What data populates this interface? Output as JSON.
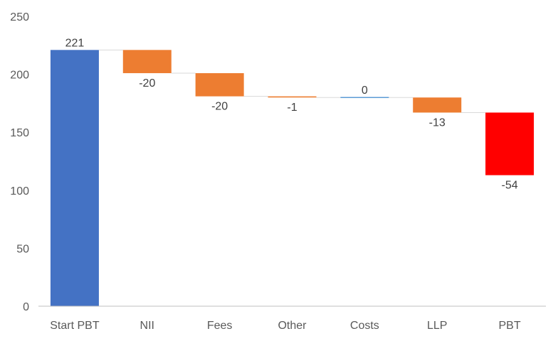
{
  "chart_data": {
    "type": "bar",
    "subtype": "waterfall",
    "title": "",
    "xlabel": "",
    "ylabel": "",
    "ylim": [
      0,
      250
    ],
    "yticks": [
      0,
      50,
      100,
      150,
      200,
      250
    ],
    "grid": false,
    "legend": "none",
    "categories": [
      "Start PBT",
      "NII",
      "Fees",
      "Other",
      "Costs",
      "LLP",
      "PBT"
    ],
    "values": [
      221,
      -20,
      -20,
      -1,
      0,
      -13,
      -54
    ],
    "data_labels": [
      "221",
      "-20",
      "-20",
      "-1",
      "0",
      "-13",
      "-54"
    ],
    "bars": [
      {
        "category": "Start PBT",
        "kind": "total",
        "start": 0,
        "end": 221,
        "color": "#4472C4"
      },
      {
        "category": "NII",
        "kind": "delta",
        "start": 221,
        "end": 201,
        "color": "#ED7D31"
      },
      {
        "category": "Fees",
        "kind": "delta",
        "start": 201,
        "end": 181,
        "color": "#ED7D31"
      },
      {
        "category": "Other",
        "kind": "delta",
        "start": 181,
        "end": 180,
        "color": "#ED7D31"
      },
      {
        "category": "Costs",
        "kind": "delta",
        "start": 180,
        "end": 180,
        "color": "#5B9BD5"
      },
      {
        "category": "LLP",
        "kind": "delta",
        "start": 180,
        "end": 167,
        "color": "#ED7D31"
      },
      {
        "category": "PBT",
        "kind": "delta",
        "start": 167,
        "end": 113,
        "color": "#FF0000"
      }
    ],
    "colors": {
      "total": "#4472C4",
      "negative": "#ED7D31",
      "final": "#FF0000",
      "zero": "#5B9BD5",
      "connector": "#D9D9D9",
      "axis": "#BFBFBF"
    }
  }
}
